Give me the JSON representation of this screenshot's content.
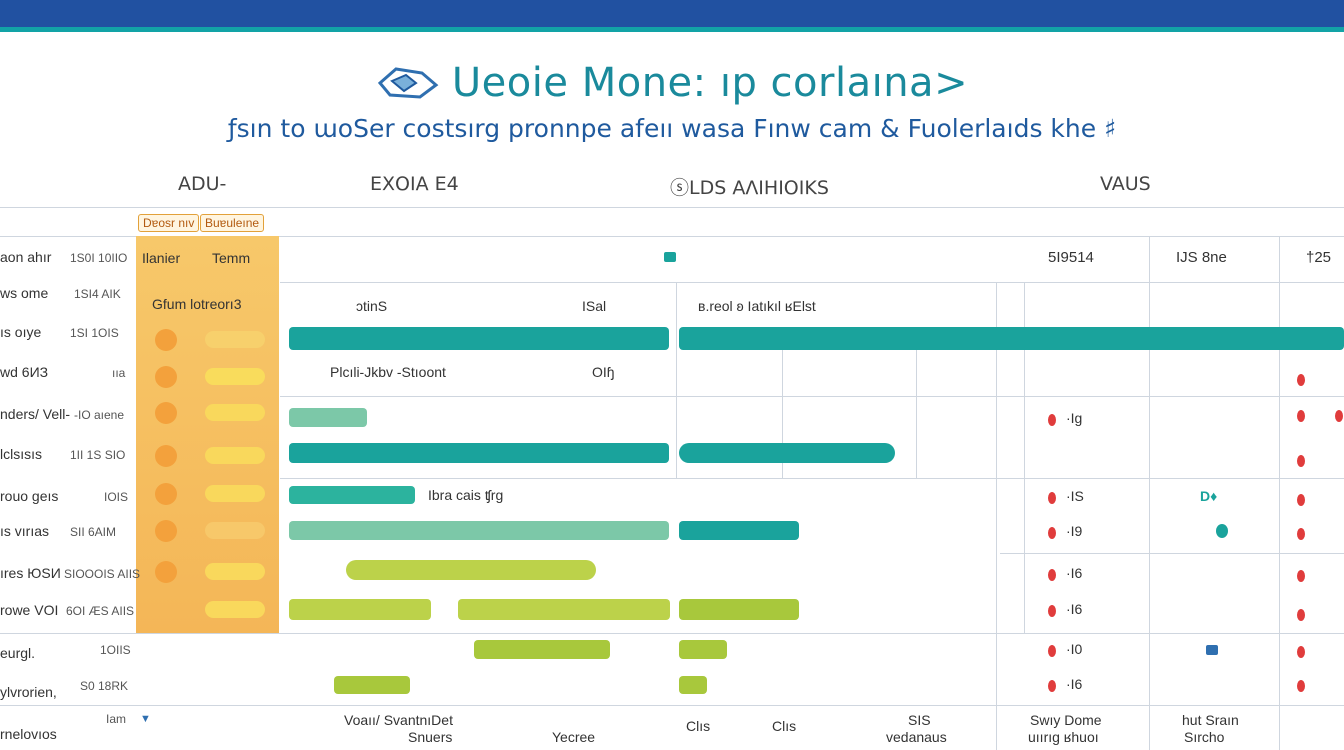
{
  "header": {
    "title": "Ueoie Mone: ıp corlaına>",
    "subtitle": "ƒsın to ɯoSer costsırg pronnpe afeıı wasa Fınw cam & Fuolerlaıds khe ♯"
  },
  "columns": [
    "ADU-",
    "ЕΧΟΙΑ Ε4",
    "ⓢLDS ΑΛΙΗΙΟΙΚS",
    "VAUS"
  ],
  "legend": {
    "tag1": "Dɐosr nıv",
    "tag2": "Buɐuleıne"
  },
  "orange_header": {
    "left": "Ilanier",
    "right": "Temm",
    "sub": "Gfum lotreorı3"
  },
  "rows": [
    {
      "label": "aon ahır",
      "code": "1S0I 10IIO"
    },
    {
      "label": "ws ome",
      "code": "1SI4 AIK"
    },
    {
      "label": "ıs oıye",
      "code": "1SI 1OIS"
    },
    {
      "label": "wd 6ИЗ",
      "code": "ııa"
    },
    {
      "label": "nders/ Vell-",
      "code": "-IO aıene"
    },
    {
      "label": "lclsısıs",
      "code": "1II 1S SIO"
    },
    {
      "label": "rouo ɡeıs",
      "code": "IOIS"
    },
    {
      "label": "ıs vırıas",
      "code": "SII 6AIM"
    },
    {
      "label": "ıres ЮSИ",
      "code": "SIOOOIS AIIS"
    },
    {
      "label": "rowe VOI",
      "code": "6OI ÆS AIIS"
    },
    {
      "label": "eurgl.",
      "code": "1OIIS"
    },
    {
      "label": "ylvrorien,",
      "code": "S0 18RK"
    },
    {
      "label": "rnelovıos",
      "code": "Iam"
    }
  ],
  "top_values": [
    "5I9514",
    "IJS 8ne",
    "†25"
  ],
  "section_labels": {
    "s1_a": "ɔtinS",
    "s1_b": "ISal",
    "s1_c": "ʙ.reol   ʚ   Iatıkıl ʁElst",
    "s2_a": "Plcıli-Jkbv -Stıoont",
    "s2_b": "OIɧ",
    "s3_a": "Ibra cais ʧrg"
  },
  "cells": {
    "c1": "·Ig",
    "c2": "·IS",
    "c3": "·I9",
    "c4": "·I6",
    "c5": "·I6",
    "c6": "·I6",
    "c7": "·Ig",
    "c8": "·I0",
    "c9": "·I6",
    "green": "D♦"
  },
  "footer": {
    "f1": "Voaıı/ SvantnıDet",
    "f2": "Snuers",
    "f3": "Yecree",
    "f4": "Clıs",
    "f5": "Clıs",
    "f6": "SIS",
    "f7": "vedanaus",
    "f8": "Swıy Dome",
    "f9": "uıırıg ʁhuoı",
    "f10": "hut Sraın",
    "f11": "Sırcho"
  },
  "colors": {
    "topbar": "#2151a1",
    "accent": "#12a3a6",
    "teal": "#1aa39c",
    "lime": "#a8c83c",
    "orange": "#f4b657"
  }
}
